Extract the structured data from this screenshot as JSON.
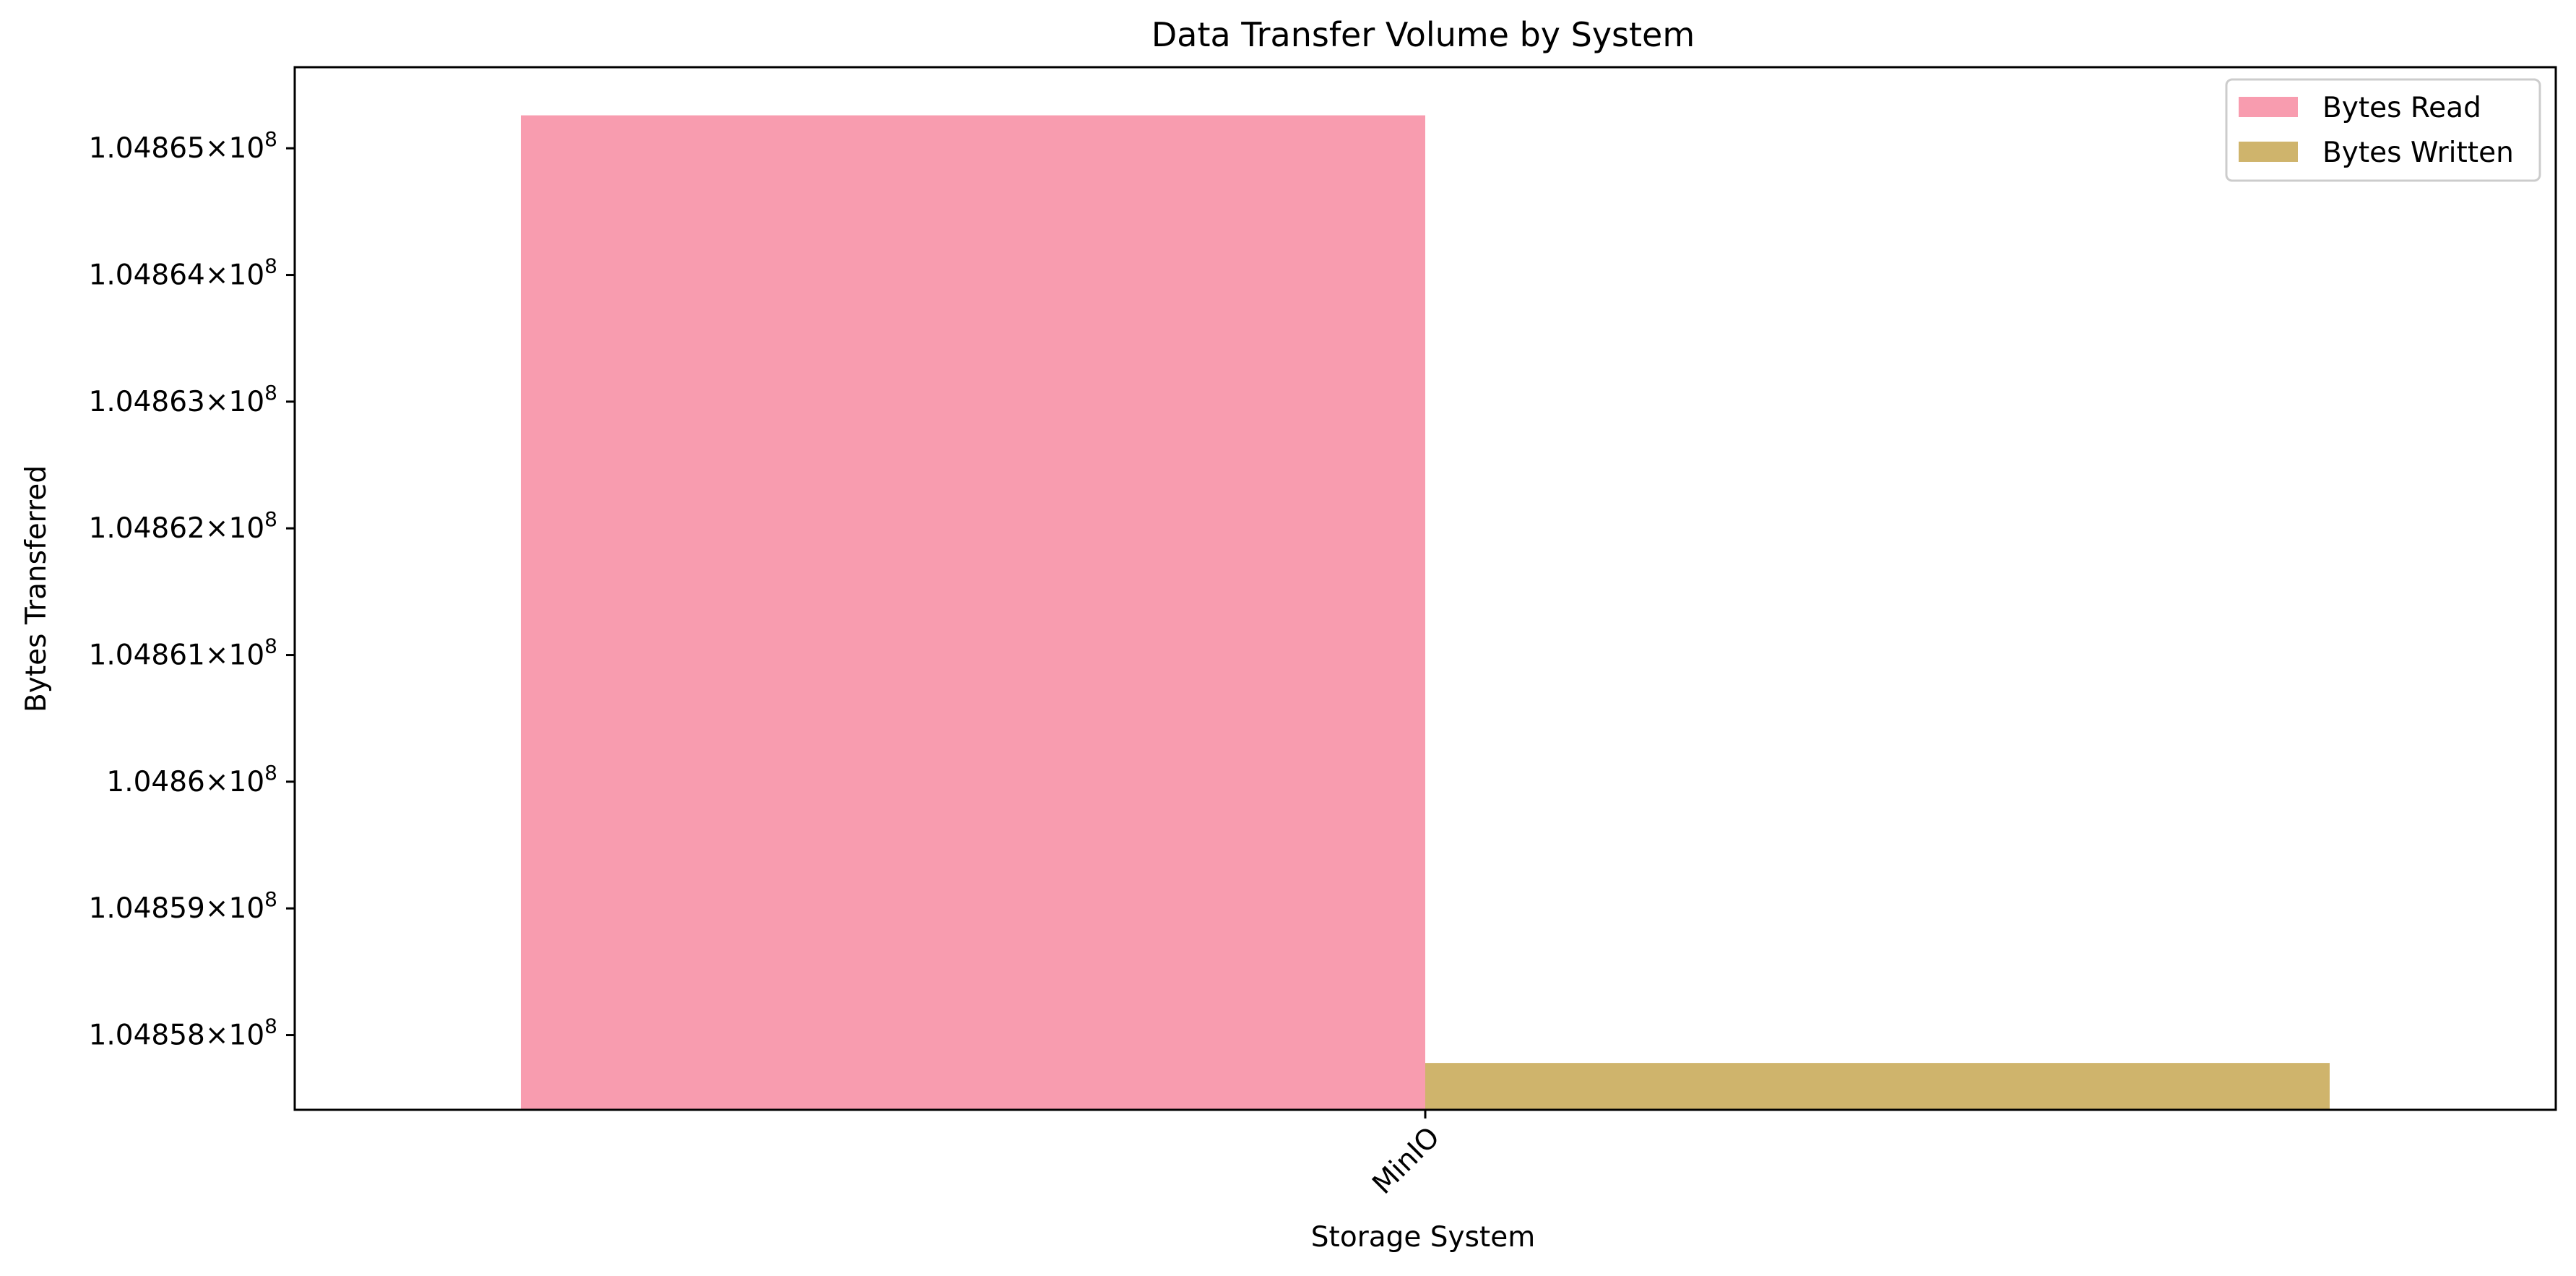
{
  "chart_data": {
    "type": "bar",
    "title": "Data Transfer Volume by System",
    "xlabel": "Storage System",
    "ylabel": "Bytes Transferred",
    "categories": [
      "MinIO"
    ],
    "series": [
      {
        "name": "Bytes Read",
        "values": [
          104865260
        ],
        "color": "#f89caf"
      },
      {
        "name": "Bytes Written",
        "values": [
          104857780
        ],
        "color": "#cfb46c"
      }
    ],
    "ylim": [
      104857410,
      104865640
    ],
    "y_ticks": [
      104858000,
      104859000,
      104860000,
      104861000,
      104862000,
      104863000,
      104864000,
      104865000
    ],
    "y_tick_labels": [
      {
        "mantissa": "1.04858",
        "exponent": "8"
      },
      {
        "mantissa": "1.04859",
        "exponent": "8"
      },
      {
        "mantissa": "1.0486",
        "exponent": "8"
      },
      {
        "mantissa": "1.04861",
        "exponent": "8"
      },
      {
        "mantissa": "1.04862",
        "exponent": "8"
      },
      {
        "mantissa": "1.04863",
        "exponent": "8"
      },
      {
        "mantissa": "1.04864",
        "exponent": "8"
      },
      {
        "mantissa": "1.04865",
        "exponent": "8"
      }
    ],
    "x_tick_rotation": -45,
    "grid": false,
    "legend": "top-right"
  }
}
